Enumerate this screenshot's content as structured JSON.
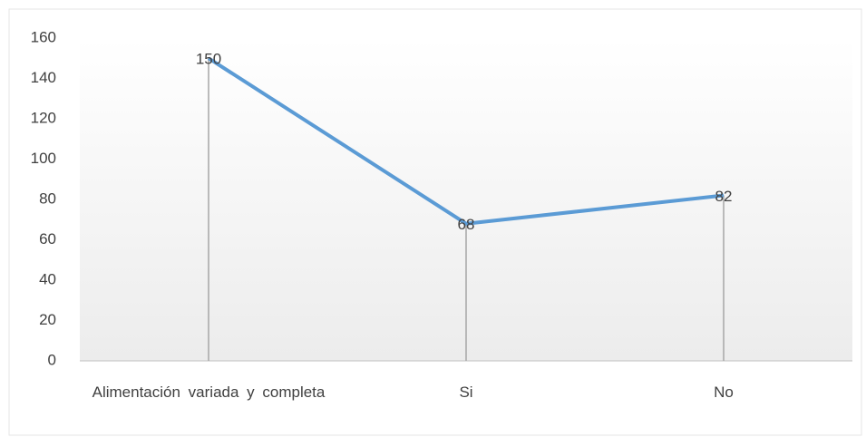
{
  "chart_data": {
    "type": "line",
    "categories": [
      "Alimentación variada y completa",
      "Si",
      "No"
    ],
    "values": [
      150,
      68,
      82
    ],
    "color": "#5b9bd5",
    "ylim": [
      0,
      160
    ],
    "yticks": [
      0,
      20,
      40,
      60,
      80,
      100,
      120,
      140,
      160
    ],
    "drop_lines": true,
    "data_labels": true
  }
}
